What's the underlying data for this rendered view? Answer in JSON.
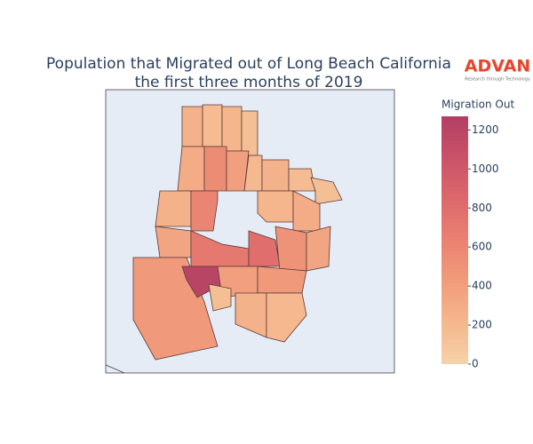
{
  "chart_data": {
    "type": "choropleth",
    "title": "Population that Migrated out of Long Beach California",
    "subtitle": "the first three months of 2019",
    "colorbar_title": "Migration Out",
    "values": [
      250,
      180,
      220,
      150,
      300,
      550,
      400,
      200,
      250,
      180,
      150,
      250,
      600,
      220,
      300,
      350,
      700,
      800,
      500,
      350,
      450,
      1200,
      400,
      450,
      250,
      200,
      150
    ],
    "zlim": [
      0,
      1270
    ],
    "zticks": [
      0,
      200,
      400,
      600,
      800,
      1000,
      1200
    ],
    "colorscale": [
      "#f6d2a9",
      "#f5b78e",
      "#f19c7c",
      "#ea8171",
      "#dd686c",
      "#ca5268",
      "#b13f64"
    ]
  },
  "logo": {
    "name": "ADVAN",
    "tagline": "Research through Technology"
  }
}
